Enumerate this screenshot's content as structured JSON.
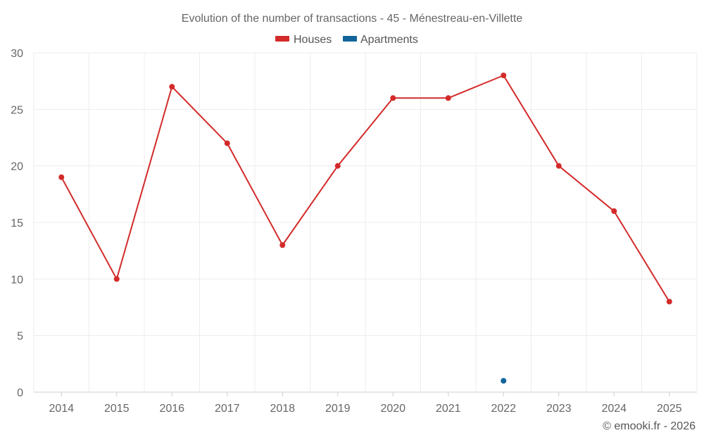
{
  "chart_data": {
    "type": "line",
    "title": "Evolution of the number of transactions - 45 - Ménestreau-en-Villette",
    "categories": [
      "2014",
      "2015",
      "2016",
      "2017",
      "2018",
      "2019",
      "2020",
      "2021",
      "2022",
      "2023",
      "2024",
      "2025"
    ],
    "series": [
      {
        "name": "Houses",
        "color": "#d32a2a",
        "values": [
          19,
          10,
          27,
          22,
          13,
          20,
          26,
          26,
          28,
          20,
          16,
          8
        ]
      },
      {
        "name": "Apartments",
        "color": "#11659b",
        "values": [
          null,
          null,
          null,
          null,
          null,
          null,
          null,
          null,
          1,
          null,
          null,
          null
        ]
      }
    ],
    "ylim": [
      0,
      30
    ],
    "yticks": [
      "0",
      "5",
      "10",
      "15",
      "20",
      "25",
      "30"
    ],
    "xlabel": "",
    "ylabel": "",
    "grid": true,
    "legend": "top-center"
  },
  "credit": "© emooki.fr - 2026"
}
